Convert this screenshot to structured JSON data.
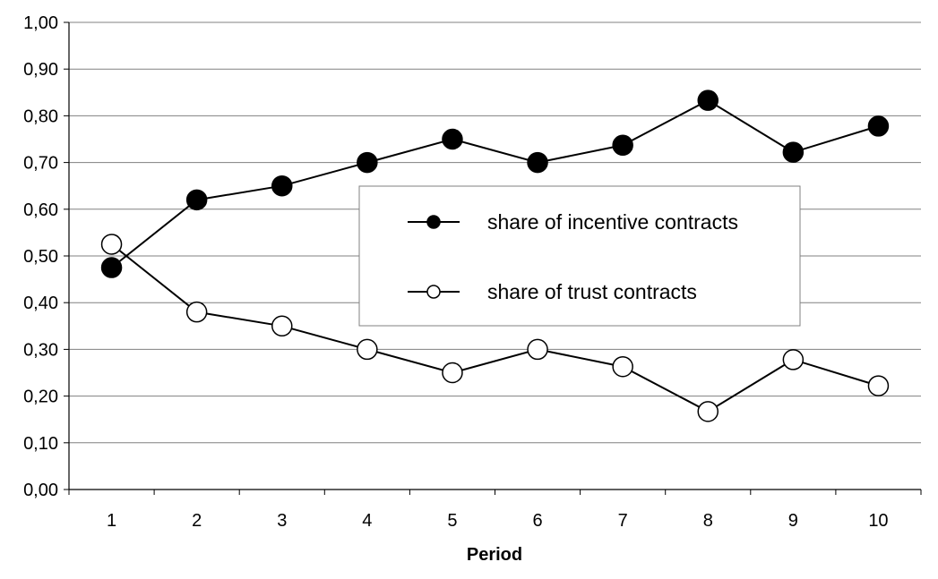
{
  "chart_data": {
    "type": "line",
    "title": "",
    "xlabel": "Period",
    "ylabel": "",
    "categories": [
      "1",
      "2",
      "3",
      "4",
      "5",
      "6",
      "7",
      "8",
      "9",
      "10"
    ],
    "ylim": [
      0,
      1
    ],
    "yticks": [
      "0,00",
      "0,10",
      "0,20",
      "0,30",
      "0,40",
      "0,50",
      "0,60",
      "0,70",
      "0,80",
      "0,90",
      "1,00"
    ],
    "grid": true,
    "legend_position": "center",
    "series": [
      {
        "name": "share of incentive contracts",
        "marker": "filled-circle",
        "color": "#000000",
        "values": [
          0.475,
          0.62,
          0.65,
          0.7,
          0.75,
          0.7,
          0.737,
          0.833,
          0.722,
          0.778
        ]
      },
      {
        "name": "share of trust contracts",
        "marker": "open-circle",
        "color": "#000000",
        "values": [
          0.525,
          0.38,
          0.35,
          0.3,
          0.25,
          0.3,
          0.263,
          0.167,
          0.278,
          0.222
        ]
      }
    ]
  }
}
